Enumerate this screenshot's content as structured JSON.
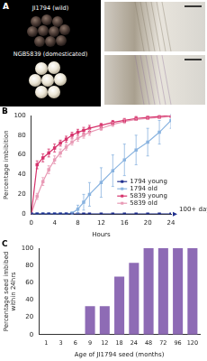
{
  "panel_a": {
    "panel_label": "A",
    "images": [
      {
        "label": "JI1794 (wild)"
      },
      {
        "label": "NGB5839 (domesticated)"
      }
    ]
  },
  "chart_data": [
    {
      "type": "line",
      "panel_label": "B",
      "x_label": "Hours",
      "y_label": "Percentage imbibition",
      "x": [
        0,
        1,
        2,
        3,
        4,
        5,
        6,
        7,
        8,
        9,
        10,
        12,
        14,
        16,
        18,
        20,
        22,
        24
      ],
      "series": [
        {
          "name": "1794 young",
          "color": "#1f2f8f",
          "marker": "square",
          "values": [
            0,
            0,
            0,
            0,
            0,
            0,
            0,
            0,
            0,
            0,
            0,
            0,
            0,
            0,
            0,
            0,
            0,
            0
          ],
          "errors": [
            0,
            0,
            0,
            0,
            0,
            0,
            0,
            0,
            0,
            0,
            0,
            0,
            0,
            0,
            0,
            0,
            0,
            0
          ]
        },
        {
          "name": "1794 old",
          "color": "#8ab4e0",
          "marker": "square",
          "values": [
            0,
            0,
            0,
            0,
            0,
            0,
            0,
            1,
            5,
            12,
            20,
            32,
            44,
            55,
            65,
            73,
            83,
            95
          ],
          "errors": [
            0,
            0,
            0,
            0,
            0,
            0,
            0,
            1,
            4,
            8,
            12,
            15,
            16,
            16,
            15,
            14,
            12,
            8
          ]
        },
        {
          "name": "5839 young",
          "color": "#d6336c",
          "marker": "square",
          "values": [
            0,
            50,
            57,
            62,
            67,
            72,
            76,
            80,
            83,
            85,
            87,
            90,
            93,
            95,
            97,
            98,
            99,
            100
          ],
          "errors": [
            0,
            4,
            4,
            4,
            4,
            3,
            3,
            3,
            3,
            3,
            3,
            2,
            2,
            2,
            2,
            1,
            1,
            0
          ]
        },
        {
          "name": "5839 old",
          "color": "#e89ab5",
          "marker": "square",
          "values": [
            0,
            18,
            33,
            45,
            55,
            62,
            68,
            73,
            77,
            80,
            83,
            87,
            91,
            94,
            96,
            97,
            98,
            99
          ],
          "errors": [
            0,
            3,
            4,
            4,
            4,
            4,
            3,
            3,
            3,
            3,
            3,
            2,
            2,
            2,
            1,
            1,
            1,
            1
          ]
        }
      ],
      "annotations": [
        {
          "text": "100+ days",
          "series": "1794 young"
        }
      ],
      "xlim": [
        0,
        24
      ],
      "xticks": [
        0,
        4,
        8,
        12,
        16,
        20,
        24
      ],
      "ylim": [
        0,
        100
      ],
      "yticks": [
        0,
        20,
        40,
        60,
        80,
        100
      ],
      "grid": false,
      "legend": "lower right"
    },
    {
      "type": "bar",
      "panel_label": "C",
      "x_label": "Age of JI1794 seed (months)",
      "y_label": [
        "Percentage seed imbibed",
        "within 24hrs"
      ],
      "categories": [
        "1",
        "3",
        "6",
        "9",
        "12",
        "18",
        "24",
        "48",
        "72",
        "96",
        "120"
      ],
      "values": [
        0,
        0,
        0,
        33,
        33,
        67,
        83,
        100,
        100,
        100,
        100
      ],
      "color": "#8e6bb5",
      "ylim": [
        0,
        100
      ],
      "yticks": [
        0,
        20,
        40,
        60,
        80,
        100
      ],
      "grid": false
    }
  ]
}
